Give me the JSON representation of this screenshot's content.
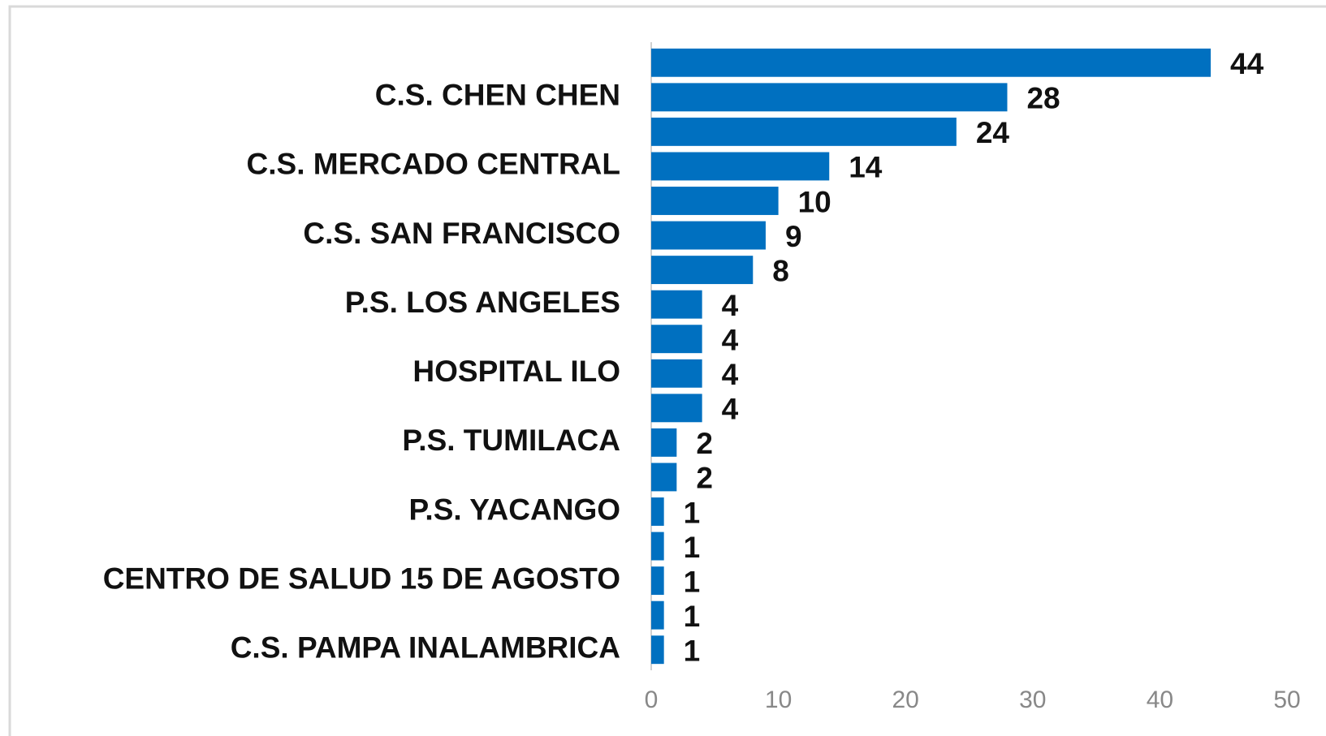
{
  "chart_data": {
    "type": "bar",
    "orientation": "horizontal",
    "categories": [
      null,
      "C.S. CHEN CHEN",
      null,
      "C.S. MERCADO CENTRAL",
      null,
      "C.S. SAN FRANCISCO",
      null,
      "P.S. LOS ANGELES",
      null,
      "HOSPITAL ILO",
      null,
      "P.S. TUMILACA",
      null,
      "P.S. YACANGO",
      null,
      "CENTRO DE SALUD 15 DE AGOSTO",
      null,
      "C.S. PAMPA INALAMBRICA"
    ],
    "values": [
      44,
      28,
      24,
      14,
      10,
      9,
      8,
      4,
      4,
      4,
      4,
      2,
      2,
      1,
      1,
      1,
      1,
      1
    ],
    "color": "#0070c0",
    "xlim": [
      0,
      50
    ],
    "xticks": [
      0,
      10,
      20,
      30,
      40,
      50
    ],
    "grid": false
  }
}
